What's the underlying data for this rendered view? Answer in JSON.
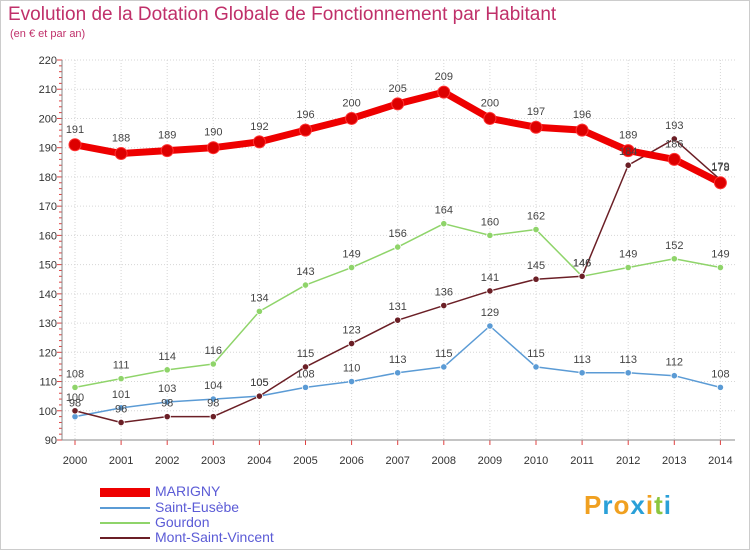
{
  "header": {
    "title": "Evolution de la Dotation Globale de Fonctionnement par Habitant",
    "subtitle": "(en € et par an)"
  },
  "logo": {
    "letters": [
      "P",
      "r",
      "o",
      "x",
      "i",
      "t",
      "i"
    ],
    "colors": [
      "#f0a020",
      "#2aa0d8",
      "#f0a020",
      "#2aa0d8",
      "#f0a020",
      "#8cc63f",
      "#2aa0d8"
    ]
  },
  "chart_data": {
    "type": "line",
    "x": [
      "2000",
      "2001",
      "2002",
      "2003",
      "2004",
      "2005",
      "2006",
      "2007",
      "2008",
      "2009",
      "2010",
      "2011",
      "2012",
      "2013",
      "2014"
    ],
    "ylim": [
      90,
      220
    ],
    "yticks": [
      90,
      100,
      110,
      120,
      130,
      140,
      150,
      160,
      170,
      180,
      190,
      200,
      210,
      220
    ],
    "grid": true,
    "legend_position": "bottom-left",
    "series": [
      {
        "name": "MARIGNY",
        "color": "#ee0000",
        "values": [
          191,
          188,
          189,
          190,
          192,
          196,
          200,
          205,
          209,
          200,
          197,
          196,
          189,
          186,
          178
        ],
        "labels": [
          "191",
          "188",
          "189",
          "190",
          "192",
          "196",
          "200",
          "205",
          "209",
          "200",
          "197",
          "196",
          "189",
          "186",
          "178"
        ]
      },
      {
        "name": "Saint-Eusèbe",
        "color": "#5b9bd5",
        "values": [
          98,
          101,
          103,
          104,
          105,
          108,
          110,
          113,
          115,
          129,
          115,
          113,
          113,
          112,
          108
        ],
        "labels": [
          "98",
          "101",
          "103",
          "104",
          "105",
          "108",
          "110",
          "113",
          "115",
          "129",
          "115",
          "113",
          "113",
          "112",
          "108"
        ]
      },
      {
        "name": "Gourdon",
        "color": "#8fd46a",
        "values": [
          108,
          111,
          114,
          116,
          134,
          143,
          149,
          156,
          164,
          160,
          162,
          146,
          149,
          152,
          149
        ],
        "labels": [
          "108",
          "111",
          "114",
          "116",
          "134",
          "143",
          "149",
          "156",
          "164",
          "160",
          "162",
          "146",
          "149",
          "152",
          "149"
        ]
      },
      {
        "name": "Mont-Saint-Vincent",
        "color": "#6b1f26",
        "values": [
          100,
          96,
          98,
          98,
          105,
          115,
          123,
          131,
          136,
          141,
          145,
          146,
          184,
          193,
          179
        ],
        "labels": [
          "100",
          "96",
          "98",
          "98",
          "105",
          "115",
          "123",
          "131",
          "136",
          "141",
          "145",
          "146",
          "184",
          "193",
          "179"
        ]
      }
    ]
  }
}
